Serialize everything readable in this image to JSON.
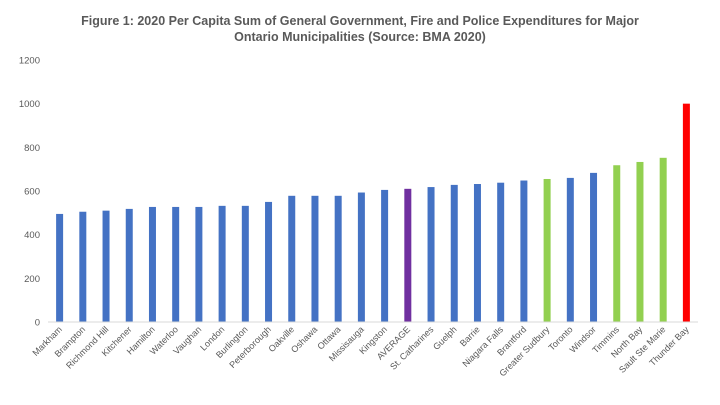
{
  "chart_data": {
    "type": "bar",
    "title": "Figure 1: 2020 Per Capita Sum of General Government, Fire and Police Expenditures for Major",
    "subtitle": "Ontario Municipalities (Source: BMA 2020)",
    "xlabel": "",
    "ylabel": "",
    "ylim": [
      0,
      1200
    ],
    "yticks": [
      "0",
      "200",
      "400",
      "600",
      "800",
      "1000",
      "1200"
    ],
    "grid": false,
    "legend": "none",
    "categories": [
      "Markham",
      "Brampton",
      "Richmond Hill",
      "Kitchener",
      "Hamilton",
      "Waterloo",
      "Vaughan",
      "London",
      "Burlington",
      "Peterborough",
      "Oakville",
      "Oshawa",
      "Ottawa",
      "Missisauga",
      "Kingston",
      "AVERAGE",
      "St. Catharines",
      "Guelph",
      "Barrie",
      "Niagara Falls",
      "Brantford",
      "Greater Sudbury",
      "Toronto",
      "Windsor",
      "Timmins",
      "North Bay",
      "Sault Ste Marie",
      "Thunder Bay"
    ],
    "values": [
      495,
      505,
      510,
      518,
      527,
      527,
      527,
      532,
      532,
      550,
      578,
      578,
      578,
      593,
      605,
      610,
      618,
      628,
      632,
      638,
      648,
      655,
      660,
      683,
      718,
      733,
      752,
      1000
    ],
    "bar_colors": [
      "#4472C4",
      "#4472C4",
      "#4472C4",
      "#4472C4",
      "#4472C4",
      "#4472C4",
      "#4472C4",
      "#4472C4",
      "#4472C4",
      "#4472C4",
      "#4472C4",
      "#4472C4",
      "#4472C4",
      "#4472C4",
      "#4472C4",
      "#7030A0",
      "#4472C4",
      "#4472C4",
      "#4472C4",
      "#4472C4",
      "#4472C4",
      "#92D050",
      "#4472C4",
      "#4472C4",
      "#92D050",
      "#92D050",
      "#92D050",
      "#FF0000"
    ],
    "axis_color": "#d9d9d9",
    "text_color": "#595959"
  }
}
